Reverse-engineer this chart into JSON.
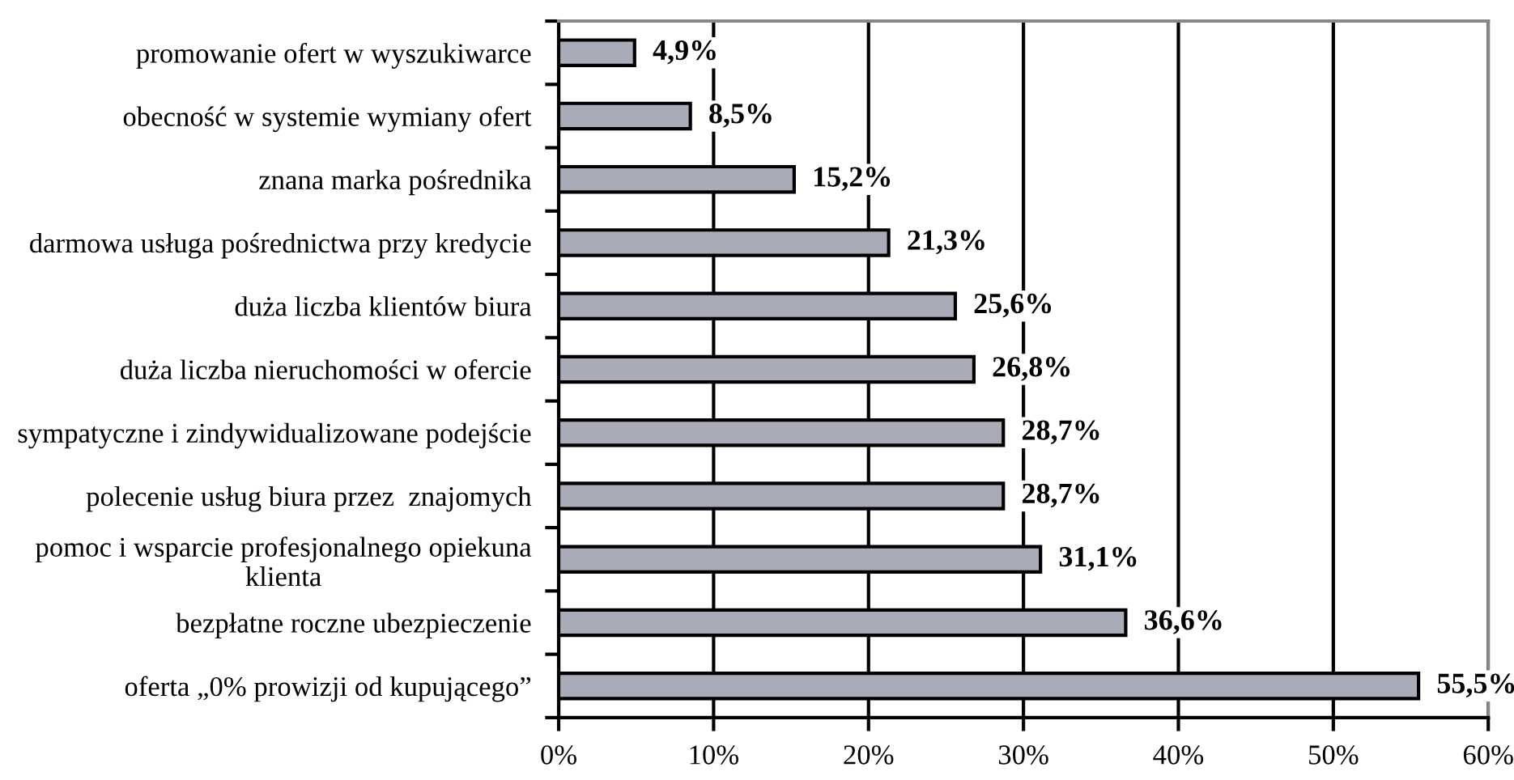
{
  "chart_data": {
    "type": "bar",
    "orientation": "horizontal",
    "categories": [
      "promowanie ofert w wyszukiwarce",
      "obecność w systemie wymiany ofert",
      "znana marka pośrednika",
      "darmowa usługa pośrednictwa przy kredycie",
      "duża liczba klientów biura",
      "duża liczba nieruchomości w ofercie",
      "sympatyczne i zindywidualizowane podejście",
      "polecenie usług biura przez  znajomych",
      "pomoc i wsparcie profesjonalnego opiekuna\nklienta",
      "bezpłatne roczne ubezpieczenie",
      "oferta „0% prowizji od kupującego”"
    ],
    "values": [
      4.9,
      8.5,
      15.2,
      21.3,
      25.6,
      26.8,
      28.7,
      28.7,
      31.1,
      36.6,
      55.5
    ],
    "value_labels": [
      "4,9%",
      "8,5%",
      "15,2%",
      "21,3%",
      "25,6%",
      "26,8%",
      "28,7%",
      "28,7%",
      "31,1%",
      "36,6%",
      "55,5%"
    ],
    "color": "#a9acb8",
    "xlim": [
      0,
      60
    ],
    "xticks": [
      {
        "value": 0,
        "label": "0%"
      },
      {
        "value": 10,
        "label": "10%"
      },
      {
        "value": 20,
        "label": "20%"
      },
      {
        "value": 30,
        "label": "30%"
      },
      {
        "value": 40,
        "label": "40%"
      },
      {
        "value": 50,
        "label": "50%"
      },
      {
        "value": 60,
        "label": "60%"
      }
    ],
    "grid": "x"
  }
}
